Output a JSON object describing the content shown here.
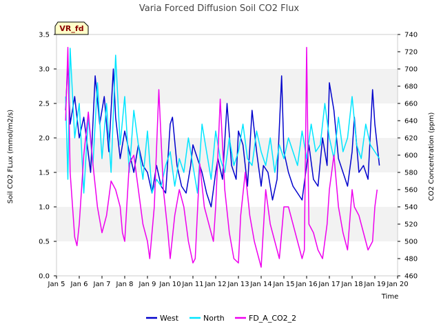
{
  "chart_data": {
    "type": "line",
    "title": "Varia Forced Diffusion Soil CO2 Flux",
    "badge": "VR_fd",
    "xlabel": "Time",
    "ylabel": "Soil CO2 FLux (mmol/m2/s)",
    "y2label": "CO2 Concentration (ppm)",
    "xlim": [
      5,
      20
    ],
    "ylim": [
      0,
      3.5
    ],
    "y2lim": [
      460,
      740
    ],
    "x_ticks": [
      5,
      6,
      7,
      8,
      9,
      10,
      11,
      12,
      13,
      14,
      15,
      16,
      17,
      18,
      19,
      20
    ],
    "x_tick_labels": [
      "Jan 5",
      "Jan 6",
      "Jan 7",
      "Jan 8",
      "Jan 9",
      "Jan 10",
      "Jan 11",
      "Jan 12",
      "Jan 13",
      "Jan 14",
      "Jan 15",
      "Jan 16",
      "Jan 17",
      "Jan 18",
      "Jan 19",
      "Jan 20"
    ],
    "y_ticks": [
      0.0,
      0.5,
      1.0,
      1.5,
      2.0,
      2.5,
      3.0,
      3.5
    ],
    "y_tick_labels": [
      "0.0",
      "0.5",
      "1.0",
      "1.5",
      "2.0",
      "2.5",
      "3.0",
      "3.5"
    ],
    "y2_ticks": [
      460,
      480,
      500,
      520,
      540,
      560,
      580,
      600,
      620,
      640,
      660,
      680,
      700,
      720,
      740
    ],
    "y2_tick_labels": [
      "460",
      "480",
      "500",
      "520",
      "540",
      "560",
      "580",
      "600",
      "620",
      "640",
      "660",
      "680",
      "700",
      "720",
      "740"
    ],
    "grid": "horizontal bands",
    "legend_position": "bottom",
    "series": [
      {
        "name": "West",
        "color": "#0000cc",
        "axis": "left",
        "x": [
          5.4,
          5.5,
          5.6,
          5.8,
          6.0,
          6.2,
          6.5,
          6.7,
          6.9,
          7.1,
          7.3,
          7.5,
          7.6,
          7.8,
          8.0,
          8.2,
          8.4,
          8.6,
          8.8,
          9.0,
          9.2,
          9.4,
          9.6,
          9.8,
          10.0,
          10.1,
          10.3,
          10.5,
          10.7,
          10.9,
          11.0,
          11.2,
          11.4,
          11.6,
          11.8,
          12.0,
          12.1,
          12.3,
          12.5,
          12.7,
          12.9,
          13.0,
          13.2,
          13.4,
          13.6,
          13.8,
          14.0,
          14.1,
          14.3,
          14.5,
          14.7,
          14.9,
          15.0,
          15.2,
          15.4,
          15.6,
          15.8,
          16.0,
          16.1,
          16.3,
          16.5,
          16.7,
          16.9,
          17.0,
          17.2,
          17.4,
          17.6,
          17.8,
          18.0,
          18.1,
          18.3,
          18.5,
          18.7,
          18.9,
          19.0,
          19.2
        ],
        "y": [
          2.4,
          3.1,
          2.2,
          2.6,
          2.0,
          2.3,
          1.5,
          2.9,
          2.2,
          2.6,
          1.8,
          3.0,
          2.3,
          1.7,
          2.1,
          1.8,
          1.5,
          1.9,
          1.6,
          1.5,
          1.2,
          1.6,
          1.3,
          1.2,
          2.2,
          2.3,
          1.6,
          1.3,
          1.2,
          1.6,
          1.9,
          1.7,
          1.5,
          1.2,
          1.0,
          1.5,
          1.7,
          1.4,
          2.5,
          1.6,
          1.4,
          2.1,
          1.9,
          1.3,
          2.4,
          1.8,
          1.3,
          1.6,
          1.5,
          1.1,
          1.4,
          2.9,
          1.8,
          1.5,
          1.3,
          1.2,
          1.1,
          1.6,
          1.9,
          1.4,
          1.3,
          2.0,
          1.6,
          2.8,
          2.4,
          1.7,
          1.5,
          1.3,
          1.8,
          2.3,
          1.5,
          1.6,
          1.4,
          2.7,
          2.2,
          1.6
        ]
      },
      {
        "name": "North",
        "color": "#00e5ff",
        "axis": "left",
        "x": [
          5.4,
          5.5,
          5.6,
          5.8,
          6.0,
          6.2,
          6.4,
          6.6,
          6.8,
          7.0,
          7.2,
          7.4,
          7.6,
          7.8,
          8.0,
          8.2,
          8.4,
          8.6,
          8.8,
          9.0,
          9.2,
          9.4,
          9.6,
          9.8,
          10.0,
          10.2,
          10.4,
          10.6,
          10.8,
          11.0,
          11.2,
          11.4,
          11.6,
          11.8,
          12.0,
          12.2,
          12.4,
          12.6,
          12.8,
          13.0,
          13.2,
          13.4,
          13.6,
          13.8,
          14.0,
          14.2,
          14.4,
          14.6,
          14.8,
          15.0,
          15.2,
          15.4,
          15.6,
          15.8,
          16.0,
          16.2,
          16.4,
          16.6,
          16.8,
          17.0,
          17.2,
          17.4,
          17.6,
          17.8,
          18.0,
          18.2,
          18.4,
          18.6,
          18.8,
          19.0,
          19.2
        ],
        "y": [
          2.6,
          1.4,
          3.3,
          2.0,
          2.5,
          1.2,
          2.3,
          1.6,
          2.8,
          1.7,
          2.5,
          1.5,
          3.2,
          1.9,
          2.6,
          1.5,
          2.4,
          1.9,
          1.4,
          2.1,
          1.2,
          1.4,
          1.3,
          1.6,
          1.8,
          1.3,
          1.7,
          1.5,
          2.0,
          1.6,
          1.2,
          2.2,
          1.8,
          1.4,
          2.1,
          1.7,
          1.5,
          2.0,
          1.6,
          1.8,
          2.2,
          1.7,
          1.6,
          2.1,
          1.8,
          1.6,
          2.0,
          1.5,
          1.9,
          1.7,
          2.0,
          1.8,
          1.6,
          2.1,
          1.7,
          2.2,
          1.8,
          1.9,
          2.5,
          2.0,
          1.7,
          2.3,
          1.8,
          2.0,
          2.6,
          1.9,
          1.7,
          2.2,
          1.9,
          1.8,
          1.7
        ]
      },
      {
        "name": "FD_A_CO2_2",
        "color": "#ee00ee",
        "axis": "right",
        "x": [
          5.4,
          5.5,
          5.6,
          5.8,
          5.9,
          6.0,
          6.2,
          6.4,
          6.6,
          6.8,
          7.0,
          7.2,
          7.4,
          7.6,
          7.8,
          7.9,
          8.0,
          8.2,
          8.4,
          8.6,
          8.8,
          9.0,
          9.1,
          9.3,
          9.5,
          9.7,
          9.9,
          10.0,
          10.2,
          10.4,
          10.6,
          10.8,
          11.0,
          11.1,
          11.3,
          11.5,
          11.7,
          11.9,
          12.0,
          12.2,
          12.4,
          12.6,
          12.8,
          13.0,
          13.1,
          13.3,
          13.5,
          13.7,
          13.9,
          14.0,
          14.2,
          14.4,
          14.6,
          14.8,
          15.0,
          15.2,
          15.4,
          15.6,
          15.8,
          15.9,
          16.0,
          16.1,
          16.3,
          16.5,
          16.7,
          16.9,
          17.0,
          17.2,
          17.4,
          17.6,
          17.8,
          18.0,
          18.1,
          18.3,
          18.5,
          18.7,
          18.9,
          19.0,
          19.1
        ],
        "y": [
          640,
          725,
          580,
          505,
          495,
          520,
          600,
          650,
          590,
          540,
          510,
          530,
          570,
          560,
          540,
          510,
          500,
          590,
          600,
          560,
          520,
          500,
          480,
          540,
          676,
          560,
          510,
          480,
          530,
          560,
          540,
          500,
          475,
          480,
          590,
          540,
          520,
          500,
          540,
          665,
          560,
          510,
          480,
          475,
          530,
          580,
          530,
          500,
          480,
          470,
          560,
          520,
          500,
          480,
          540,
          540,
          520,
          500,
          480,
          490,
          725,
          520,
          510,
          490,
          480,
          520,
          560,
          600,
          540,
          510,
          490,
          560,
          540,
          530,
          510,
          490,
          500,
          540,
          560
        ]
      }
    ]
  }
}
